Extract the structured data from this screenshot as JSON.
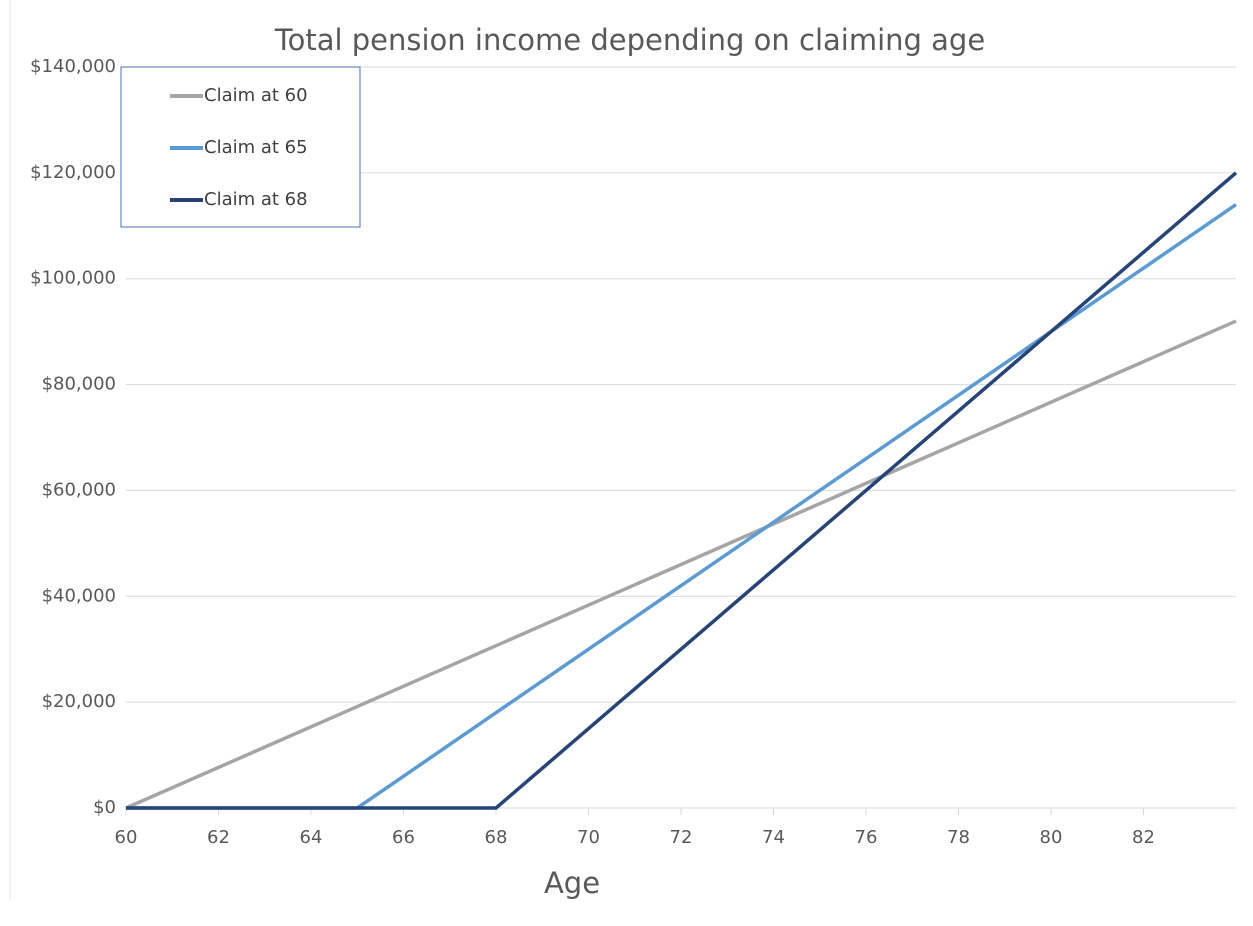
{
  "chart_data": {
    "type": "line",
    "title": "Total pension income depending on claiming age",
    "x_label": "Age",
    "x": [
      60,
      65,
      68,
      84
    ],
    "series": [
      {
        "name": "Claim at 60",
        "color": "#a5a5a5",
        "values": [
          0,
          19167,
          30667,
          92000
        ]
      },
      {
        "name": "Claim at 65",
        "color": "#5b9bd5",
        "values": [
          0,
          0,
          18000,
          114000
        ]
      },
      {
        "name": "Claim at 68",
        "color": "#264478",
        "values": [
          0,
          0,
          0,
          120000
        ]
      }
    ],
    "xlim": [
      60,
      84
    ],
    "xticks": [
      60,
      62,
      64,
      66,
      68,
      70,
      72,
      74,
      76,
      78,
      80,
      82
    ],
    "ylim": [
      0,
      140000
    ],
    "yticks": [
      {
        "value": 0,
        "label": "$0"
      },
      {
        "value": 20000,
        "label": "$20,000"
      },
      {
        "value": 40000,
        "label": "$40,000"
      },
      {
        "value": 60000,
        "label": "$60,000"
      },
      {
        "value": 80000,
        "label": "$80,000"
      },
      {
        "value": 100000,
        "label": "$100,000"
      },
      {
        "value": 120000,
        "label": "$120,000"
      },
      {
        "value": 140000,
        "label": "$140,000"
      }
    ],
    "grid": true,
    "legend": "upper left"
  }
}
